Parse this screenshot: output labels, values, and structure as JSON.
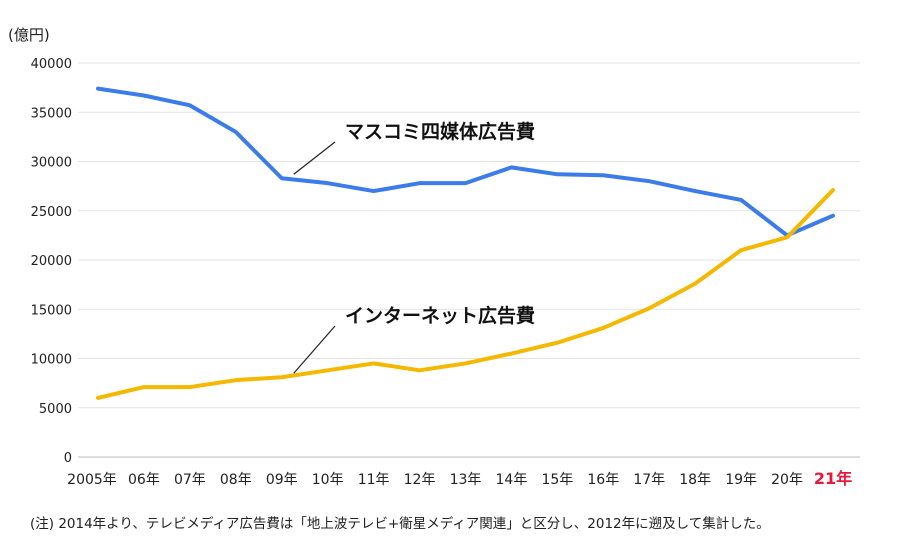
{
  "chart_data": {
    "type": "line",
    "ylabel": "(億円)",
    "ylim": [
      0,
      40000
    ],
    "yticks": [
      0,
      5000,
      10000,
      15000,
      20000,
      25000,
      30000,
      35000,
      40000
    ],
    "grid": true,
    "categories": [
      "2005年",
      "06年",
      "07年",
      "08年",
      "09年",
      "10年",
      "11年",
      "12年",
      "13年",
      "14年",
      "15年",
      "16年",
      "17年",
      "18年",
      "19年",
      "20年",
      "21年"
    ],
    "highlight_category": "21年",
    "highlight_color": "#e8173a",
    "series": [
      {
        "name": "マスコミ四媒体広告費",
        "color": "#3b7cea",
        "values": [
          37400,
          36700,
          35700,
          33000,
          28300,
          27800,
          27000,
          27800,
          27800,
          29400,
          28700,
          28600,
          28000,
          27000,
          26100,
          22500,
          24500
        ]
      },
      {
        "name": "インターネット広告費",
        "color": "#f5b800",
        "values": [
          6000,
          7100,
          7100,
          7800,
          8100,
          8800,
          9500,
          8800,
          9500,
          10500,
          11600,
          13100,
          15100,
          17600,
          21000,
          22300,
          27100
        ]
      }
    ]
  },
  "note": "(注) 2014年より、テレビメディア広告費は「地上波テレビ+衛星メディア関連」と区分し、2012年に遡及して集計した。"
}
